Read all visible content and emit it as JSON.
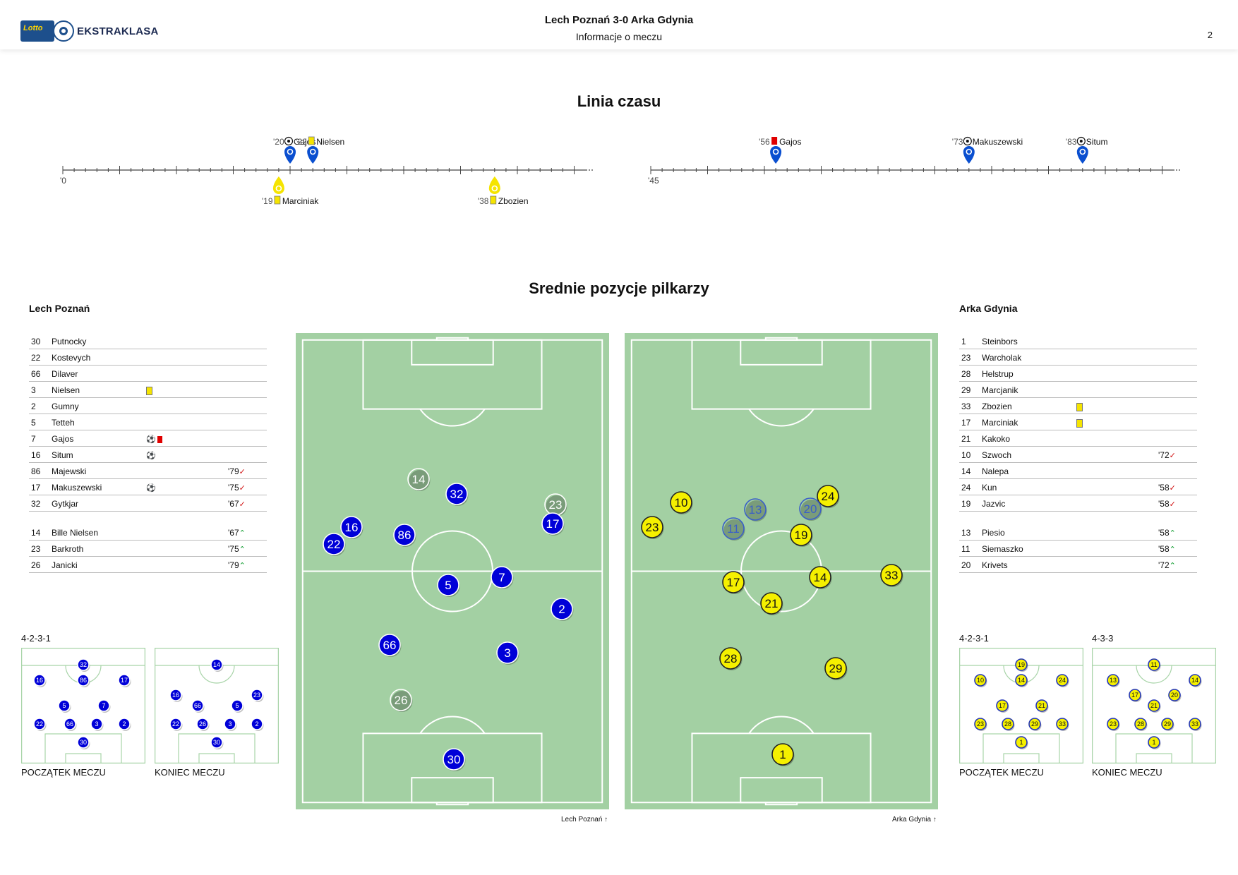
{
  "header": {
    "title": "Lech Poznań 3-0 Arka Gdynia",
    "subtitle": "Informacje o meczu",
    "page": "2",
    "logo_text": "EKSTRAKLASA",
    "logo_badge": "Lotto"
  },
  "timeline": {
    "title": "Linia czasu",
    "start_first_half": "'0",
    "start_second_half": "'45",
    "events": [
      {
        "minute": "'20",
        "type": "goal",
        "player": "Gajos",
        "team": "home"
      },
      {
        "minute": "'22",
        "type": "yellow",
        "player": "Nielsen",
        "team": "home"
      },
      {
        "minute": "'19",
        "type": "yellow",
        "player": "Marciniak",
        "team": "away"
      },
      {
        "minute": "'38",
        "type": "yellow",
        "player": "Zbozien",
        "team": "away"
      },
      {
        "minute": "'56",
        "type": "red",
        "player": "Gajos",
        "team": "home"
      },
      {
        "minute": "'73",
        "type": "goal",
        "player": "Makuszewski",
        "team": "home"
      },
      {
        "minute": "'83",
        "type": "goal",
        "player": "Situm",
        "team": "home"
      }
    ]
  },
  "positions": {
    "title": "Srednie pozycje pilkarzy",
    "home": {
      "name": "Lech Poznań",
      "caption": "Lech Poznań",
      "color": "#0000d8",
      "roster": [
        {
          "num": "30",
          "name": "Putnocky",
          "ev": [],
          "sub": ""
        },
        {
          "num": "22",
          "name": "Kostevych",
          "ev": [],
          "sub": ""
        },
        {
          "num": "66",
          "name": "Dilaver",
          "ev": [],
          "sub": ""
        },
        {
          "num": "3",
          "name": "Nielsen",
          "ev": [
            "yellow"
          ],
          "sub": ""
        },
        {
          "num": "2",
          "name": "Gumny",
          "ev": [],
          "sub": ""
        },
        {
          "num": "5",
          "name": "Tetteh",
          "ev": [],
          "sub": ""
        },
        {
          "num": "7",
          "name": "Gajos",
          "ev": [
            "goal",
            "red"
          ],
          "sub": ""
        },
        {
          "num": "16",
          "name": "Situm",
          "ev": [
            "goal"
          ],
          "sub": ""
        },
        {
          "num": "86",
          "name": "Majewski",
          "ev": [],
          "sub": "'79",
          "dir": "out"
        },
        {
          "num": "17",
          "name": "Makuszewski",
          "ev": [
            "goal"
          ],
          "sub": "'75",
          "dir": "out"
        },
        {
          "num": "32",
          "name": "Gytkjar",
          "ev": [],
          "sub": "'67",
          "dir": "out"
        }
      ],
      "bench": [
        {
          "num": "14",
          "name": "Bille Nielsen",
          "ev": [],
          "sub": "'67",
          "dir": "in"
        },
        {
          "num": "23",
          "name": "Barkroth",
          "ev": [],
          "sub": "'75",
          "dir": "in"
        },
        {
          "num": "26",
          "name": "Janicki",
          "ev": [],
          "sub": "'79",
          "dir": "in"
        }
      ],
      "formation": "4-2-3-1",
      "start_label": "POCZĄTEK MECZU",
      "end_label": "KONIEC MECZU"
    },
    "away": {
      "name": "Arka Gdynia",
      "caption": "Arka Gdynia",
      "color": "#f5f000",
      "roster": [
        {
          "num": "1",
          "name": "Steinbors",
          "ev": [],
          "sub": ""
        },
        {
          "num": "23",
          "name": "Warcholak",
          "ev": [],
          "sub": ""
        },
        {
          "num": "28",
          "name": "Helstrup",
          "ev": [],
          "sub": ""
        },
        {
          "num": "29",
          "name": "Marcjanik",
          "ev": [],
          "sub": ""
        },
        {
          "num": "33",
          "name": "Zbozien",
          "ev": [
            "yellow"
          ],
          "sub": ""
        },
        {
          "num": "17",
          "name": "Marciniak",
          "ev": [
            "yellow"
          ],
          "sub": ""
        },
        {
          "num": "21",
          "name": "Kakoko",
          "ev": [],
          "sub": ""
        },
        {
          "num": "10",
          "name": "Szwoch",
          "ev": [],
          "sub": "'72",
          "dir": "out"
        },
        {
          "num": "14",
          "name": "Nalepa",
          "ev": [],
          "sub": ""
        },
        {
          "num": "24",
          "name": "Kun",
          "ev": [],
          "sub": "'58",
          "dir": "out"
        },
        {
          "num": "19",
          "name": "Jazvic",
          "ev": [],
          "sub": "'58",
          "dir": "out"
        }
      ],
      "bench": [
        {
          "num": "13",
          "name": "Piesio",
          "ev": [],
          "sub": "'58",
          "dir": "in"
        },
        {
          "num": "11",
          "name": "Siemaszko",
          "ev": [],
          "sub": "'58",
          "dir": "in"
        },
        {
          "num": "20",
          "name": "Krivets",
          "ev": [],
          "sub": "'72",
          "dir": "in"
        }
      ],
      "formation_start": "4-2-3-1",
      "formation_end": "4-3-3",
      "start_label": "POCZĄTEK MECZU",
      "end_label": "KONIEC MECZU"
    }
  }
}
